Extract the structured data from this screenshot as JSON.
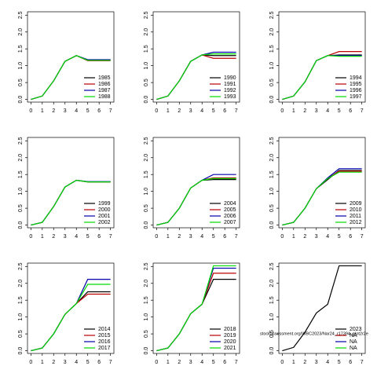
{
  "chart_data": [
    {
      "type": "line",
      "x": [
        0,
        1,
        2,
        3,
        4,
        5,
        6,
        7
      ],
      "xlim": [
        -0.3,
        7.3
      ],
      "ylim": [
        -0.08,
        2.6
      ],
      "xticks": [
        0,
        1,
        2,
        3,
        4,
        5,
        6,
        7
      ],
      "yticks": [
        {
          "value": 0,
          "label": "0.0"
        },
        0.5,
        {
          "value": 1,
          "label": "1.0"
        },
        1.5,
        {
          "value": 2,
          "label": "2.0"
        },
        2.5
      ],
      "legend": "bottomright",
      "series": [
        {
          "name": "1985",
          "color": "#000000",
          "values": [
            0,
            0.1,
            0.55,
            1.13,
            1.3,
            1.17,
            1.17,
            1.17
          ]
        },
        {
          "name": "1986",
          "color": "#bb0000",
          "values": [
            0,
            0.1,
            0.55,
            1.13,
            1.3,
            1.15,
            1.15,
            1.15
          ]
        },
        {
          "name": "1987",
          "color": "#0000aa",
          "values": [
            0,
            0.1,
            0.55,
            1.13,
            1.3,
            1.18,
            1.18,
            1.18
          ]
        },
        {
          "name": "1988",
          "color": "#00dd00",
          "values": [
            0,
            0.1,
            0.55,
            1.13,
            1.3,
            1.16,
            1.16,
            1.16
          ]
        }
      ]
    },
    {
      "type": "line",
      "x": [
        0,
        1,
        2,
        3,
        4,
        5,
        6,
        7
      ],
      "xlim": [
        -0.3,
        7.3
      ],
      "ylim": [
        -0.08,
        2.6
      ],
      "xticks": [
        0,
        1,
        2,
        3,
        4,
        5,
        6,
        7
      ],
      "yticks": [
        {
          "value": 0,
          "label": "0.0"
        },
        0.5,
        {
          "value": 1,
          "label": "1.0"
        },
        1.5,
        {
          "value": 2,
          "label": "2.0"
        },
        2.5
      ],
      "legend": "bottomright",
      "series": [
        {
          "name": "1990",
          "color": "#000000",
          "values": [
            0,
            0.1,
            0.55,
            1.13,
            1.32,
            1.3,
            1.3,
            1.3
          ]
        },
        {
          "name": "1991",
          "color": "#bb0000",
          "values": [
            0,
            0.1,
            0.55,
            1.13,
            1.32,
            1.22,
            1.22,
            1.22
          ]
        },
        {
          "name": "1992",
          "color": "#0000aa",
          "values": [
            0,
            0.1,
            0.55,
            1.13,
            1.32,
            1.4,
            1.4,
            1.4
          ]
        },
        {
          "name": "1993",
          "color": "#00dd00",
          "values": [
            0,
            0.1,
            0.55,
            1.13,
            1.32,
            1.35,
            1.35,
            1.35
          ]
        }
      ]
    },
    {
      "type": "line",
      "x": [
        0,
        1,
        2,
        3,
        4,
        5,
        6,
        7
      ],
      "xlim": [
        -0.3,
        7.3
      ],
      "ylim": [
        -0.08,
        2.6
      ],
      "xticks": [
        0,
        1,
        2,
        3,
        4,
        5,
        6,
        7
      ],
      "yticks": [
        {
          "value": 0,
          "label": "0.0"
        },
        0.5,
        {
          "value": 1,
          "label": "1.0"
        },
        1.5,
        {
          "value": 2,
          "label": "2.0"
        },
        2.5
      ],
      "legend": "bottomright",
      "series": [
        {
          "name": "1994",
          "color": "#000000",
          "values": [
            0,
            0.1,
            0.52,
            1.15,
            1.3,
            1.32,
            1.32,
            1.32
          ]
        },
        {
          "name": "1995",
          "color": "#bb0000",
          "values": [
            0,
            0.1,
            0.52,
            1.15,
            1.3,
            1.42,
            1.42,
            1.42
          ]
        },
        {
          "name": "1996",
          "color": "#0000aa",
          "values": [
            0,
            0.1,
            0.52,
            1.15,
            1.3,
            1.3,
            1.3,
            1.3
          ]
        },
        {
          "name": "1997",
          "color": "#00dd00",
          "values": [
            0,
            0.1,
            0.52,
            1.15,
            1.3,
            1.28,
            1.28,
            1.28
          ]
        }
      ]
    },
    {
      "type": "line",
      "x": [
        0,
        1,
        2,
        3,
        4,
        5,
        6,
        7
      ],
      "xlim": [
        -0.3,
        7.3
      ],
      "ylim": [
        -0.08,
        2.6
      ],
      "xticks": [
        0,
        1,
        2,
        3,
        4,
        5,
        6,
        7
      ],
      "yticks": [
        {
          "value": 0,
          "label": "0.0"
        },
        0.5,
        {
          "value": 1,
          "label": "1.0"
        },
        1.5,
        {
          "value": 2,
          "label": "2.0"
        },
        2.5
      ],
      "legend": "bottomright",
      "series": [
        {
          "name": "1999",
          "color": "#000000",
          "values": [
            0,
            0.08,
            0.55,
            1.13,
            1.33,
            1.28,
            1.28,
            1.28
          ]
        },
        {
          "name": "2000",
          "color": "#bb0000",
          "values": [
            0,
            0.08,
            0.55,
            1.13,
            1.33,
            1.28,
            1.28,
            1.28
          ]
        },
        {
          "name": "2001",
          "color": "#0000aa",
          "values": [
            0,
            0.08,
            0.55,
            1.13,
            1.33,
            1.29,
            1.29,
            1.29
          ]
        },
        {
          "name": "2002",
          "color": "#00dd00",
          "values": [
            0,
            0.08,
            0.55,
            1.13,
            1.33,
            1.28,
            1.28,
            1.28
          ]
        }
      ]
    },
    {
      "type": "line",
      "x": [
        0,
        1,
        2,
        3,
        4,
        5,
        6,
        7
      ],
      "xlim": [
        -0.3,
        7.3
      ],
      "ylim": [
        -0.08,
        2.6
      ],
      "xticks": [
        0,
        1,
        2,
        3,
        4,
        5,
        6,
        7
      ],
      "yticks": [
        {
          "value": 0,
          "label": "0.0"
        },
        0.5,
        {
          "value": 1,
          "label": "1.0"
        },
        1.5,
        {
          "value": 2,
          "label": "2.0"
        },
        2.5
      ],
      "legend": "bottomright",
      "series": [
        {
          "name": "2004",
          "color": "#000000",
          "values": [
            0,
            0.08,
            0.5,
            1.1,
            1.33,
            1.35,
            1.35,
            1.35
          ]
        },
        {
          "name": "2005",
          "color": "#bb0000",
          "values": [
            0,
            0.08,
            0.5,
            1.1,
            1.33,
            1.4,
            1.4,
            1.4
          ]
        },
        {
          "name": "2006",
          "color": "#0000aa",
          "values": [
            0,
            0.08,
            0.5,
            1.1,
            1.33,
            1.5,
            1.5,
            1.5
          ]
        },
        {
          "name": "2007",
          "color": "#00dd00",
          "values": [
            0,
            0.08,
            0.5,
            1.1,
            1.33,
            1.38,
            1.38,
            1.38
          ]
        }
      ]
    },
    {
      "type": "line",
      "x": [
        0,
        1,
        2,
        3,
        4,
        5,
        6,
        7
      ],
      "xlim": [
        -0.3,
        7.3
      ],
      "ylim": [
        -0.08,
        2.6
      ],
      "xticks": [
        0,
        1,
        2,
        3,
        4,
        5,
        6,
        7
      ],
      "yticks": [
        {
          "value": 0,
          "label": "0.0"
        },
        0.5,
        {
          "value": 1,
          "label": "1.0"
        },
        1.5,
        {
          "value": 2,
          "label": "2.0"
        },
        2.5
      ],
      "legend": "bottomright",
      "series": [
        {
          "name": "2009",
          "color": "#000000",
          "values": [
            0,
            0.08,
            0.5,
            1.08,
            1.35,
            1.62,
            1.62,
            1.62
          ]
        },
        {
          "name": "2010",
          "color": "#bb0000",
          "values": [
            0,
            0.08,
            0.5,
            1.08,
            1.38,
            1.6,
            1.6,
            1.6
          ]
        },
        {
          "name": "2011",
          "color": "#0000aa",
          "values": [
            0,
            0.08,
            0.5,
            1.08,
            1.4,
            1.67,
            1.67,
            1.67
          ]
        },
        {
          "name": "2012",
          "color": "#00dd00",
          "values": [
            0,
            0.08,
            0.5,
            1.08,
            1.38,
            1.57,
            1.57,
            1.57
          ]
        }
      ]
    },
    {
      "type": "line",
      "x": [
        0,
        1,
        2,
        3,
        4,
        5,
        6,
        7
      ],
      "xlim": [
        -0.3,
        7.3
      ],
      "ylim": [
        -0.08,
        2.6
      ],
      "xticks": [
        0,
        1,
        2,
        3,
        4,
        5,
        6,
        7
      ],
      "yticks": [
        {
          "value": 0,
          "label": "0.0"
        },
        0.5,
        {
          "value": 1,
          "label": "1.0"
        },
        1.5,
        {
          "value": 2,
          "label": "2.0"
        },
        2.5
      ],
      "legend": "bottomright",
      "series": [
        {
          "name": "2014",
          "color": "#000000",
          "values": [
            0,
            0.08,
            0.5,
            1.08,
            1.4,
            1.75,
            1.75,
            1.75
          ]
        },
        {
          "name": "2015",
          "color": "#bb0000",
          "values": [
            0,
            0.08,
            0.5,
            1.08,
            1.4,
            1.68,
            1.68,
            1.68
          ]
        },
        {
          "name": "2016",
          "color": "#0000aa",
          "values": [
            0,
            0.08,
            0.5,
            1.08,
            1.4,
            2.12,
            2.12,
            2.12
          ]
        },
        {
          "name": "2017",
          "color": "#00dd00",
          "values": [
            0,
            0.08,
            0.5,
            1.08,
            1.4,
            1.97,
            1.97,
            1.97
          ]
        }
      ]
    },
    {
      "type": "line",
      "x": [
        0,
        1,
        2,
        3,
        4,
        5,
        6,
        7
      ],
      "xlim": [
        -0.3,
        7.3
      ],
      "ylim": [
        -0.08,
        2.6
      ],
      "xticks": [
        0,
        1,
        2,
        3,
        4,
        5,
        6,
        7
      ],
      "yticks": [
        {
          "value": 0,
          "label": "0.0"
        },
        0.5,
        {
          "value": 1,
          "label": "1.0"
        },
        1.5,
        {
          "value": 2,
          "label": "2.0"
        },
        2.5
      ],
      "legend": "bottomright",
      "series": [
        {
          "name": "2018",
          "color": "#000000",
          "values": [
            0,
            0.08,
            0.5,
            1.1,
            1.38,
            2.12,
            2.12,
            2.12
          ]
        },
        {
          "name": "2019",
          "color": "#bb0000",
          "values": [
            0,
            0.08,
            0.5,
            1.1,
            1.38,
            2.3,
            2.3,
            2.3
          ]
        },
        {
          "name": "2020",
          "color": "#0000aa",
          "values": [
            0,
            0.08,
            0.5,
            1.1,
            1.38,
            2.45,
            2.45,
            2.45
          ]
        },
        {
          "name": "2021",
          "color": "#00dd00",
          "values": [
            0,
            0.08,
            0.5,
            1.1,
            1.38,
            2.52,
            2.52,
            2.52
          ]
        }
      ]
    },
    {
      "type": "line",
      "x": [
        0,
        1,
        2,
        3,
        4,
        5,
        6,
        7
      ],
      "xlim": [
        -0.3,
        7.3
      ],
      "ylim": [
        -0.08,
        2.6
      ],
      "xticks": [
        0,
        1,
        2,
        3,
        4,
        5,
        6,
        7
      ],
      "yticks": [
        {
          "value": 0,
          "label": "0.0"
        },
        0.5,
        {
          "value": 1,
          "label": "1.0"
        },
        1.5,
        {
          "value": 2,
          "label": "2.0"
        },
        2.5
      ],
      "legend": "bottomright",
      "annotation": "stockassessment.org/WBC2023/Nar24_r17394..plot2r2e",
      "series": [
        {
          "name": "2023",
          "color": "#000000",
          "values": [
            0,
            0.1,
            0.55,
            1.12,
            1.38,
            2.52,
            2.52,
            2.52
          ]
        },
        {
          "name": "NA",
          "color": "#bb0000",
          "values": [
            null,
            null,
            null,
            null,
            null,
            null,
            null,
            null
          ]
        },
        {
          "name": "NA",
          "color": "#0000aa",
          "values": [
            null,
            null,
            null,
            null,
            null,
            null,
            null,
            null
          ]
        },
        {
          "name": "NA",
          "color": "#00dd00",
          "values": [
            null,
            null,
            null,
            null,
            null,
            null,
            null,
            null
          ]
        }
      ]
    }
  ]
}
